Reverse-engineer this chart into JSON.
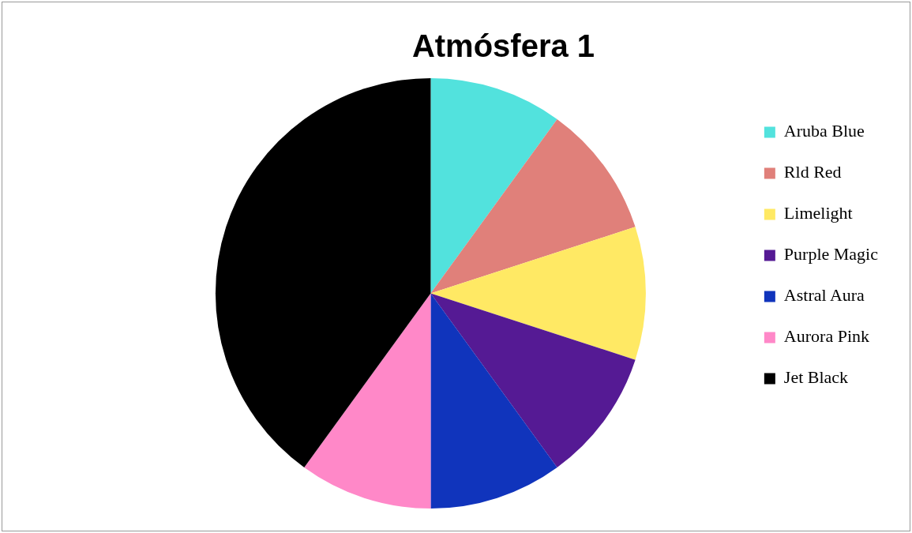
{
  "chart_data": {
    "type": "pie",
    "title": "Atmósfera 1",
    "categories": [
      "Aruba Blue",
      "Rld Red",
      "Limelight",
      "Purple Magic",
      "Astral Aura",
      "Aurora Pink",
      "Jet Black"
    ],
    "values": [
      10,
      10,
      10,
      10,
      10,
      10,
      40
    ],
    "colors": [
      "#52e2dd",
      "#e0807a",
      "#ffe964",
      "#551a94",
      "#1034bc",
      "#ff88c8",
      "#000000"
    ],
    "legend": "right"
  }
}
